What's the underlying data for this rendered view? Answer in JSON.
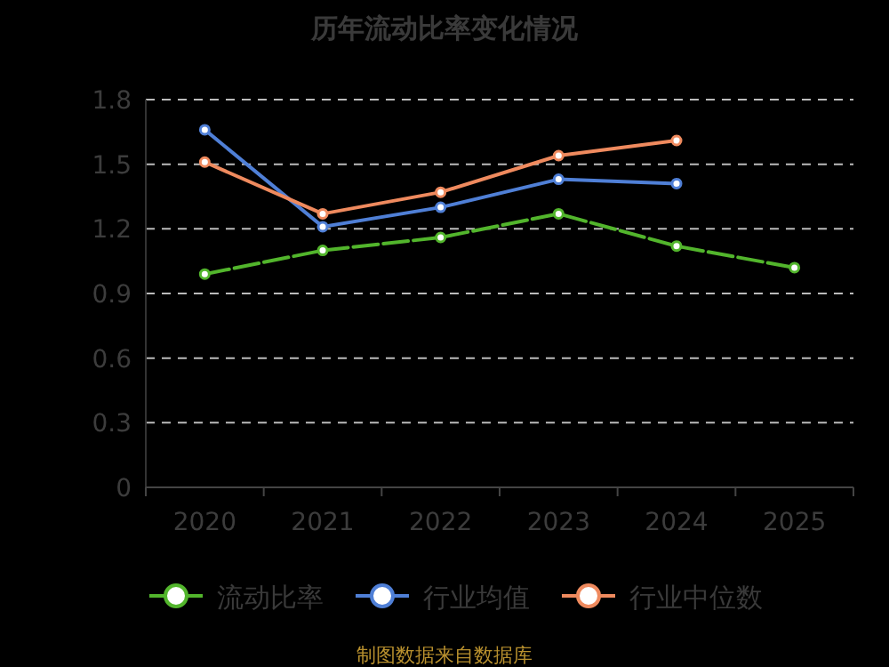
{
  "chart_data": {
    "type": "line",
    "title": "历年流动比率变化情况",
    "categories": [
      "2020",
      "2021",
      "2022",
      "2023",
      "2024",
      "2025"
    ],
    "series": [
      {
        "name": "流动比率",
        "color": "#52b52c",
        "values": [
          0.99,
          1.1,
          1.16,
          1.27,
          1.12,
          1.02
        ],
        "line_style": "dashed"
      },
      {
        "name": "行业均值",
        "color": "#4f7fd6",
        "values": [
          1.66,
          1.21,
          1.3,
          1.43,
          1.41,
          null
        ]
      },
      {
        "name": "行业中位数",
        "color": "#ef8a5e",
        "values": [
          1.51,
          1.27,
          1.37,
          1.54,
          1.61,
          null
        ]
      }
    ],
    "ylim": [
      0,
      1.8
    ],
    "yticks": [
      0,
      0.3,
      0.6,
      0.9,
      1.2,
      1.5,
      1.8
    ],
    "grid": "y",
    "legend": "bottom",
    "marker": "circle",
    "line_style": "solid",
    "annotations": [
      "制图数据来自数据库"
    ]
  }
}
